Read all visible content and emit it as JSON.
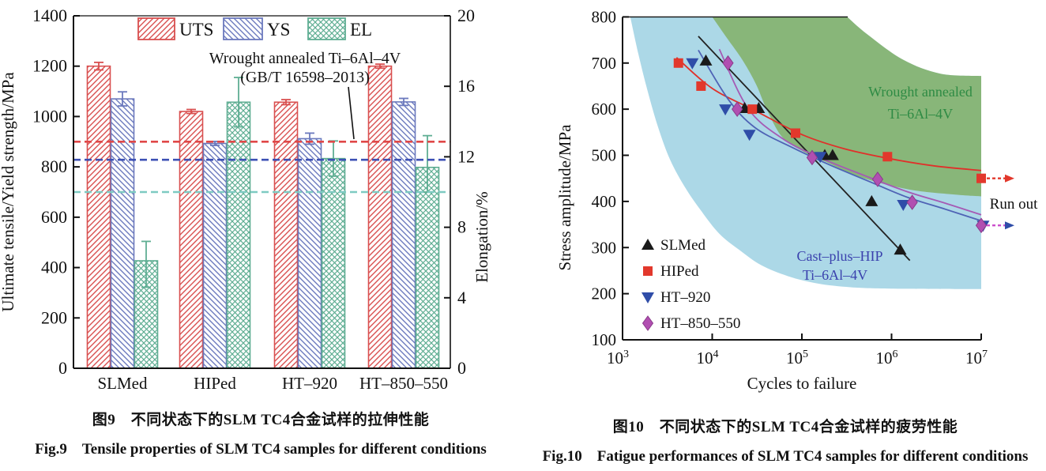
{
  "figures": {
    "fig9": {
      "caption_zh": "图9　不同状态下的SLM TC4合金试样的拉伸性能",
      "caption_en": "Fig.9　Tensile properties of SLM TC4 samples for different conditions"
    },
    "fig10": {
      "caption_zh": "图10　不同状态下的SLM TC4合金试样的疲劳性能",
      "caption_en": "Fig.10　Fatigue performances of SLM TC4 samples for different conditions"
    }
  },
  "chart_data": [
    {
      "id": "fig9",
      "type": "bar",
      "categories": [
        "SLMed",
        "HIPed",
        "HT–920",
        "HT–850–550"
      ],
      "left_axis": {
        "label": "Ultimate tensile/Yield strength/MPa",
        "min": 0,
        "max": 1400,
        "ticks": [
          0,
          200,
          400,
          600,
          800,
          1000,
          1200,
          1400
        ]
      },
      "right_axis": {
        "label": "Elongation/%",
        "min": 0,
        "max": 20,
        "ticks": [
          0,
          4,
          8,
          12,
          16,
          20
        ]
      },
      "legend_position": "top",
      "series": [
        {
          "name": "UTS",
          "axis": "left",
          "color": "#d94f4f",
          "hatch": "fwd",
          "values": [
            1200,
            1020,
            1057,
            1200
          ],
          "err_plus": [
            15,
            8,
            10,
            8
          ],
          "err_minus": [
            15,
            8,
            10,
            8
          ]
        },
        {
          "name": "YS",
          "axis": "left",
          "color": "#6b79bd",
          "hatch": "back",
          "values": [
            1070,
            893,
            912,
            1058
          ],
          "err_plus": [
            28,
            8,
            22,
            14
          ],
          "err_minus": [
            28,
            8,
            22,
            14
          ]
        },
        {
          "name": "EL",
          "axis": "right",
          "color": "#5fae93",
          "hatch": "cross",
          "values": [
            6.1,
            15.1,
            11.9,
            11.4
          ],
          "err_plus": [
            1.1,
            1.4,
            1.0,
            1.8
          ],
          "err_minus": [
            1.5,
            1.4,
            1.0,
            1.4
          ]
        }
      ],
      "ref_lines": [
        {
          "value": 900,
          "color": "#e04848"
        },
        {
          "value": 828,
          "color": "#3c50b4"
        },
        {
          "value": 700,
          "color": "#7ecac2"
        }
      ],
      "annotation": {
        "line1": "Wrought annealed Ti–6Al–4V",
        "line2": "(GB/T 16598–2013)"
      }
    },
    {
      "id": "fig10",
      "type": "scatter",
      "x_axis": {
        "label": "Cycles to failure",
        "scale": "log",
        "tick_exponents": [
          3,
          4,
          5,
          6,
          7
        ],
        "min": 1000,
        "max": 10000000
      },
      "y_axis": {
        "label": "Stress amplitude/MPa",
        "min": 100,
        "max": 800,
        "ticks": [
          100,
          200,
          300,
          400,
          500,
          600,
          700,
          800
        ]
      },
      "runout_label": "Run out",
      "series": [
        {
          "name": "SLMed",
          "marker": "triangle-up",
          "color": "#1a1a1a",
          "curve_color": "#222222",
          "points": [
            [
              8500,
              705
            ],
            [
              23000,
              602
            ],
            [
              33000,
              602
            ],
            [
              180000,
              500
            ],
            [
              220000,
              500
            ],
            [
              600000,
              400
            ],
            [
              1250000,
              295
            ]
          ],
          "fit": [
            [
              7000,
              758
            ],
            [
              1600000,
              272
            ]
          ]
        },
        {
          "name": "HIPed",
          "marker": "square",
          "color": "#e2382c",
          "curve_color": "#e0302a",
          "points": [
            [
              4200,
              700
            ],
            [
              7500,
              650
            ],
            [
              28000,
              600
            ],
            [
              85000,
              548
            ],
            [
              900000,
              497
            ]
          ],
          "fit": [
            [
              4000,
              712
            ],
            [
              10000,
              645
            ],
            [
              30000,
              597
            ],
            [
              100000,
              545
            ],
            [
              300000,
              514
            ],
            [
              1000000,
              492
            ],
            [
              3000000,
              477
            ],
            [
              10000000,
              467
            ]
          ],
          "runout": {
            "x": 10000000,
            "y": 450
          }
        },
        {
          "name": "HT–920",
          "marker": "triangle-down",
          "color": "#2f4da8",
          "curve_color": "#4f63b5",
          "points": [
            [
              6000,
              700
            ],
            [
              14000,
              600
            ],
            [
              26000,
              545
            ],
            [
              160000,
              497
            ],
            [
              1350000,
              393
            ]
          ],
          "fit": [
            [
              7000,
              728
            ],
            [
              15000,
              622
            ],
            [
              30000,
              560
            ],
            [
              80000,
              516
            ],
            [
              200000,
              480
            ],
            [
              600000,
              441
            ],
            [
              1500000,
              409
            ],
            [
              4000000,
              383
            ],
            [
              10000000,
              358
            ]
          ],
          "runout": {
            "x": 10500000,
            "y": 348
          }
        },
        {
          "name": "HT–850–550",
          "marker": "diamond",
          "color": "#b14fb1",
          "curve_color": "#a55ab4",
          "points": [
            [
              15000,
              700
            ],
            [
              19000,
              600
            ],
            [
              130000,
              495
            ],
            [
              700000,
              448
            ],
            [
              1700000,
              398
            ]
          ],
          "fit": [
            [
              12000,
              730
            ],
            [
              25000,
              602
            ],
            [
              60000,
              537
            ],
            [
              150000,
              497
            ],
            [
              500000,
              456
            ],
            [
              1500000,
              421
            ],
            [
              4000000,
              396
            ],
            [
              10000000,
              371
            ]
          ],
          "runout": {
            "x": 10000000,
            "y": 348
          }
        }
      ],
      "regions": [
        {
          "name": "Cast–plus–HIP Ti–6Al–4V",
          "color": "#a8d6e6",
          "opacity": 0.95,
          "label": {
            "line1": "Cast–plus–HIP",
            "line2": "Ti–6Al–4V",
            "color": "#3a41ad"
          },
          "lower_boundary": [
            [
              1220,
              800
            ],
            [
              1500,
              720
            ],
            [
              1900,
              640
            ],
            [
              2500,
              560
            ],
            [
              3400,
              490
            ],
            [
              5000,
              430
            ],
            [
              7500,
              380
            ],
            [
              12000,
              330
            ],
            [
              20000,
              295
            ],
            [
              35000,
              262
            ],
            [
              70000,
              238
            ],
            [
              150000,
              222
            ],
            [
              350000,
              214
            ],
            [
              1000000,
              211
            ],
            [
              10000000,
              210
            ]
          ],
          "upper_notch": [
            [
              10000000,
              672
            ],
            [
              3500000,
              677
            ],
            [
              1350000,
              707
            ],
            [
              530000,
              763
            ],
            [
              320000,
              800
            ]
          ]
        },
        {
          "name": "Wrought annealed Ti–6Al–4V",
          "color": "#83b06a",
          "opacity": 0.88,
          "label": {
            "line1": "Wrought annealed",
            "line2": "Ti–6Al–4V",
            "color": "#2e8b44"
          },
          "lower_boundary": [
            [
              10000,
              800
            ],
            [
              14500,
              755
            ],
            [
              22000,
              705
            ],
            [
              31000,
              653
            ],
            [
              40000,
              602
            ],
            [
              60000,
              540
            ],
            [
              100000,
              510
            ],
            [
              170000,
              489
            ],
            [
              460000,
              452
            ],
            [
              1560000,
              426
            ],
            [
              5000000,
              415
            ],
            [
              10000000,
              411
            ]
          ],
          "upper_notch": [
            [
              10000000,
              672
            ],
            [
              3500000,
              677
            ],
            [
              1350000,
              707
            ],
            [
              530000,
              763
            ],
            [
              320000,
              800
            ]
          ]
        }
      ]
    }
  ]
}
